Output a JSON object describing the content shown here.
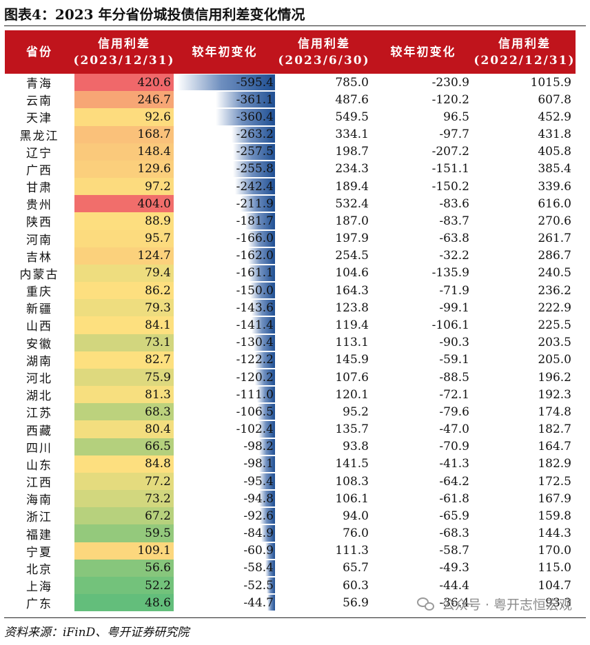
{
  "title": "图表4：2023 年分省份城投债信用利差变化情况",
  "headers": [
    [
      "省份"
    ],
    [
      "信用利差",
      "(2023/12/31)"
    ],
    [
      "较年初变化"
    ],
    [
      "信用利差",
      "(2023/6/30)"
    ],
    [
      "较年初变化"
    ],
    [
      "信用利差",
      "(2022/12/31)"
    ]
  ],
  "colors": {
    "header_bg": "#c0141c",
    "heat_high": "#f0686a",
    "heat_mid": "#fde07f",
    "heat_low": "#63be7b",
    "bar": "#1f4f93"
  },
  "bar_scale_max": 595.4,
  "rows": [
    {
      "province": "青海",
      "spread_2023_12_31": "420.6",
      "chg_ytd_2023_12_31": "-595.4",
      "spread_2023_6_30": "785.0",
      "chg_ytd_2023_6_30": "-230.9",
      "spread_2022_12_31": "1015.9"
    },
    {
      "province": "云南",
      "spread_2023_12_31": "246.7",
      "chg_ytd_2023_12_31": "-361.1",
      "spread_2023_6_30": "487.6",
      "chg_ytd_2023_6_30": "-120.2",
      "spread_2022_12_31": "607.8"
    },
    {
      "province": "天津",
      "spread_2023_12_31": "92.6",
      "chg_ytd_2023_12_31": "-360.4",
      "spread_2023_6_30": "549.5",
      "chg_ytd_2023_6_30": "96.5",
      "spread_2022_12_31": "452.9"
    },
    {
      "province": "黑龙江",
      "spread_2023_12_31": "168.7",
      "chg_ytd_2023_12_31": "-263.2",
      "spread_2023_6_30": "334.1",
      "chg_ytd_2023_6_30": "-97.7",
      "spread_2022_12_31": "431.8"
    },
    {
      "province": "辽宁",
      "spread_2023_12_31": "148.4",
      "chg_ytd_2023_12_31": "-257.5",
      "spread_2023_6_30": "198.7",
      "chg_ytd_2023_6_30": "-207.2",
      "spread_2022_12_31": "405.8"
    },
    {
      "province": "广西",
      "spread_2023_12_31": "129.6",
      "chg_ytd_2023_12_31": "-255.8",
      "spread_2023_6_30": "234.3",
      "chg_ytd_2023_6_30": "-151.1",
      "spread_2022_12_31": "385.4"
    },
    {
      "province": "甘肃",
      "spread_2023_12_31": "97.2",
      "chg_ytd_2023_12_31": "-242.4",
      "spread_2023_6_30": "189.4",
      "chg_ytd_2023_6_30": "-150.2",
      "spread_2022_12_31": "339.6"
    },
    {
      "province": "贵州",
      "spread_2023_12_31": "404.0",
      "chg_ytd_2023_12_31": "-211.9",
      "spread_2023_6_30": "532.4",
      "chg_ytd_2023_6_30": "-83.6",
      "spread_2022_12_31": "616.0"
    },
    {
      "province": "陕西",
      "spread_2023_12_31": "88.9",
      "chg_ytd_2023_12_31": "-181.7",
      "spread_2023_6_30": "187.0",
      "chg_ytd_2023_6_30": "-83.7",
      "spread_2022_12_31": "270.6"
    },
    {
      "province": "河南",
      "spread_2023_12_31": "95.7",
      "chg_ytd_2023_12_31": "-166.0",
      "spread_2023_6_30": "197.9",
      "chg_ytd_2023_6_30": "-63.8",
      "spread_2022_12_31": "261.7"
    },
    {
      "province": "吉林",
      "spread_2023_12_31": "124.7",
      "chg_ytd_2023_12_31": "-162.0",
      "spread_2023_6_30": "254.5",
      "chg_ytd_2023_6_30": "-32.2",
      "spread_2022_12_31": "286.7"
    },
    {
      "province": "内蒙古",
      "spread_2023_12_31": "79.4",
      "chg_ytd_2023_12_31": "-161.1",
      "spread_2023_6_30": "104.6",
      "chg_ytd_2023_6_30": "-135.9",
      "spread_2022_12_31": "240.5"
    },
    {
      "province": "重庆",
      "spread_2023_12_31": "86.2",
      "chg_ytd_2023_12_31": "-150.0",
      "spread_2023_6_30": "164.3",
      "chg_ytd_2023_6_30": "-71.9",
      "spread_2022_12_31": "236.2"
    },
    {
      "province": "新疆",
      "spread_2023_12_31": "79.3",
      "chg_ytd_2023_12_31": "-143.6",
      "spread_2023_6_30": "123.8",
      "chg_ytd_2023_6_30": "-99.1",
      "spread_2022_12_31": "222.9"
    },
    {
      "province": "山西",
      "spread_2023_12_31": "84.1",
      "chg_ytd_2023_12_31": "-141.4",
      "spread_2023_6_30": "119.4",
      "chg_ytd_2023_6_30": "-106.1",
      "spread_2022_12_31": "225.5"
    },
    {
      "province": "安徽",
      "spread_2023_12_31": "73.1",
      "chg_ytd_2023_12_31": "-130.4",
      "spread_2023_6_30": "113.1",
      "chg_ytd_2023_6_30": "-90.3",
      "spread_2022_12_31": "203.5"
    },
    {
      "province": "湖南",
      "spread_2023_12_31": "82.7",
      "chg_ytd_2023_12_31": "-122.2",
      "spread_2023_6_30": "145.9",
      "chg_ytd_2023_6_30": "-59.1",
      "spread_2022_12_31": "205.0"
    },
    {
      "province": "河北",
      "spread_2023_12_31": "75.9",
      "chg_ytd_2023_12_31": "-120.2",
      "spread_2023_6_30": "107.6",
      "chg_ytd_2023_6_30": "-88.5",
      "spread_2022_12_31": "196.2"
    },
    {
      "province": "湖北",
      "spread_2023_12_31": "81.3",
      "chg_ytd_2023_12_31": "-111.0",
      "spread_2023_6_30": "120.1",
      "chg_ytd_2023_6_30": "-72.1",
      "spread_2022_12_31": "192.3"
    },
    {
      "province": "江苏",
      "spread_2023_12_31": "68.3",
      "chg_ytd_2023_12_31": "-106.5",
      "spread_2023_6_30": "95.2",
      "chg_ytd_2023_6_30": "-79.6",
      "spread_2022_12_31": "174.8"
    },
    {
      "province": "西藏",
      "spread_2023_12_31": "80.4",
      "chg_ytd_2023_12_31": "-102.4",
      "spread_2023_6_30": "135.7",
      "chg_ytd_2023_6_30": "-47.0",
      "spread_2022_12_31": "182.7"
    },
    {
      "province": "四川",
      "spread_2023_12_31": "66.5",
      "chg_ytd_2023_12_31": "-98.2",
      "spread_2023_6_30": "93.8",
      "chg_ytd_2023_6_30": "-70.9",
      "spread_2022_12_31": "164.7"
    },
    {
      "province": "山东",
      "spread_2023_12_31": "84.8",
      "chg_ytd_2023_12_31": "-98.1",
      "spread_2023_6_30": "141.5",
      "chg_ytd_2023_6_30": "-41.3",
      "spread_2022_12_31": "182.9"
    },
    {
      "province": "江西",
      "spread_2023_12_31": "77.2",
      "chg_ytd_2023_12_31": "-95.4",
      "spread_2023_6_30": "108.3",
      "chg_ytd_2023_6_30": "-64.2",
      "spread_2022_12_31": "172.5"
    },
    {
      "province": "海南",
      "spread_2023_12_31": "73.2",
      "chg_ytd_2023_12_31": "-94.8",
      "spread_2023_6_30": "106.1",
      "chg_ytd_2023_6_30": "-61.8",
      "spread_2022_12_31": "167.9"
    },
    {
      "province": "浙江",
      "spread_2023_12_31": "67.2",
      "chg_ytd_2023_12_31": "-92.6",
      "spread_2023_6_30": "94.0",
      "chg_ytd_2023_6_30": "-65.9",
      "spread_2022_12_31": "159.8"
    },
    {
      "province": "福建",
      "spread_2023_12_31": "59.5",
      "chg_ytd_2023_12_31": "-84.9",
      "spread_2023_6_30": "76.0",
      "chg_ytd_2023_6_30": "-68.3",
      "spread_2022_12_31": "144.3"
    },
    {
      "province": "宁夏",
      "spread_2023_12_31": "109.1",
      "chg_ytd_2023_12_31": "-60.9",
      "spread_2023_6_30": "111.3",
      "chg_ytd_2023_6_30": "-58.7",
      "spread_2022_12_31": "170.0"
    },
    {
      "province": "北京",
      "spread_2023_12_31": "56.6",
      "chg_ytd_2023_12_31": "-58.4",
      "spread_2023_6_30": "65.7",
      "chg_ytd_2023_6_30": "-49.3",
      "spread_2022_12_31": "115.0"
    },
    {
      "province": "上海",
      "spread_2023_12_31": "52.2",
      "chg_ytd_2023_12_31": "-52.5",
      "spread_2023_6_30": "60.3",
      "chg_ytd_2023_6_30": "-44.4",
      "spread_2022_12_31": "104.7"
    },
    {
      "province": "广东",
      "spread_2023_12_31": "48.6",
      "chg_ytd_2023_12_31": "-44.7",
      "spread_2023_6_30": "56.9",
      "chg_ytd_2023_6_30": "-36.4",
      "spread_2022_12_31": "93.3"
    }
  ],
  "source": "资料来源：iFinD、粤开证券研究院",
  "watermark": "公众号 · 粤开志恒宏观",
  "watermark_icon": "wechat-icon"
}
